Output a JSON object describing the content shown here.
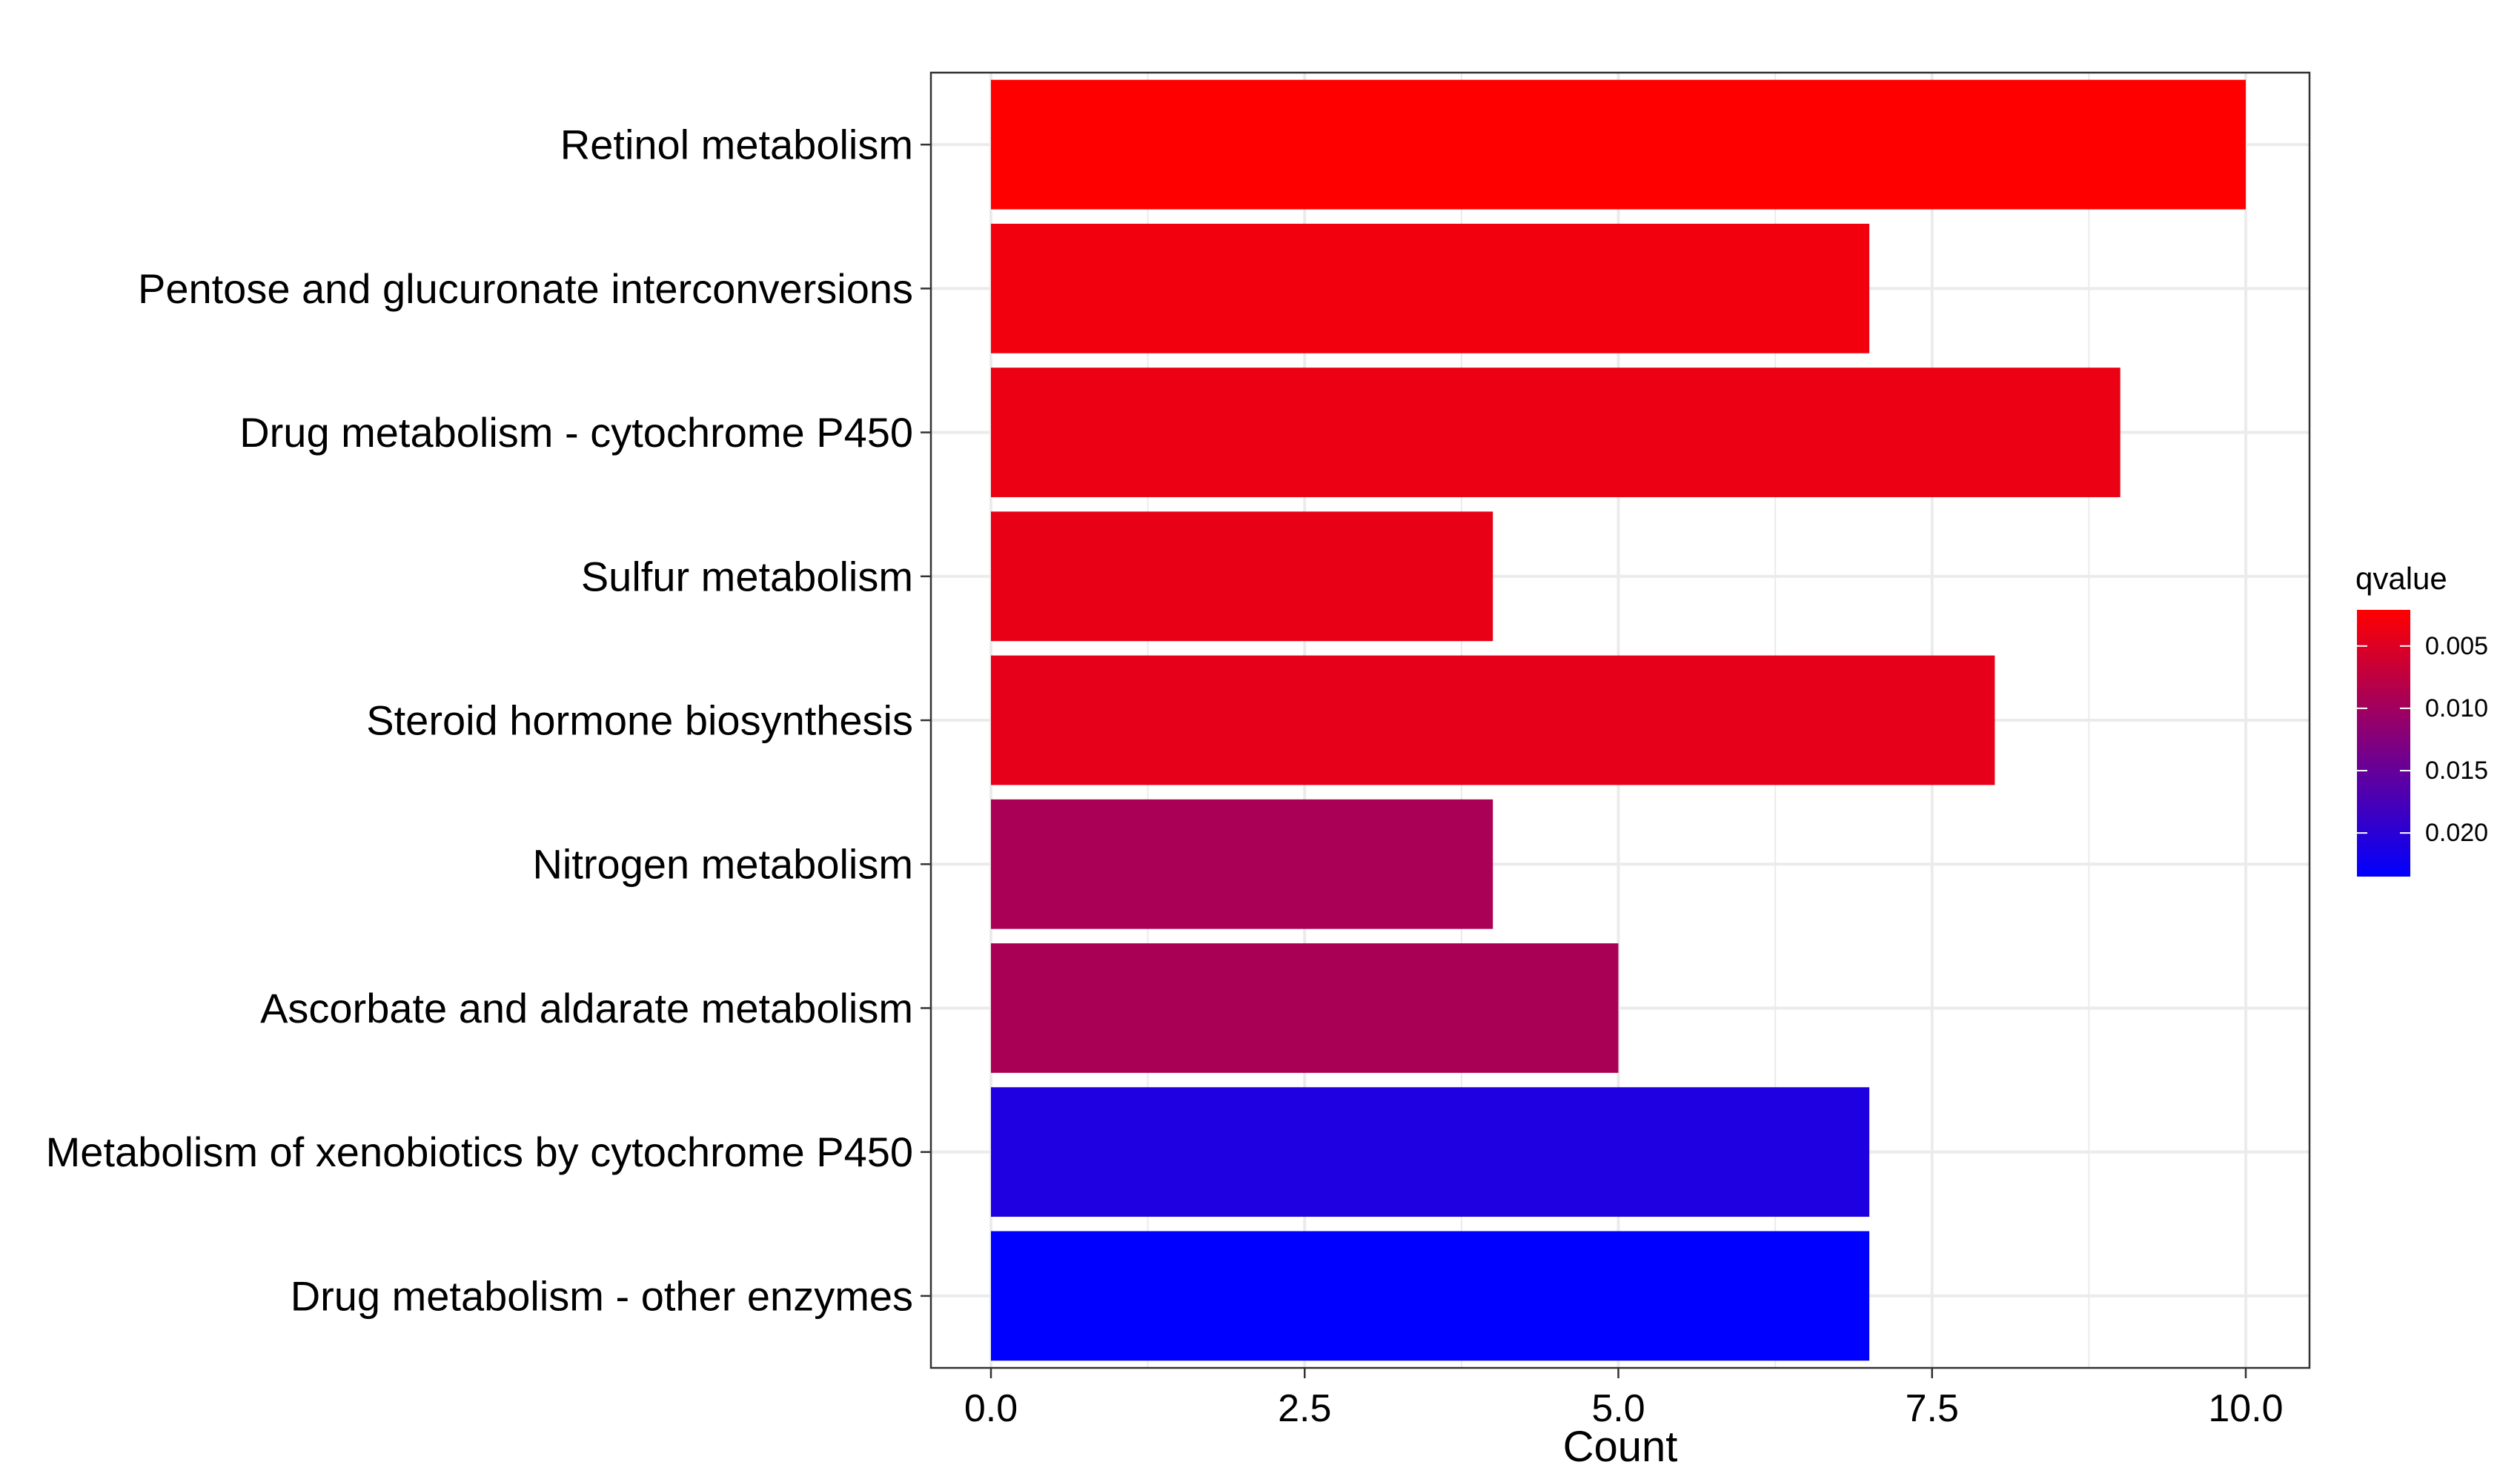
{
  "chart_data": {
    "type": "bar",
    "orientation": "horizontal",
    "title": "",
    "xlabel": "Count",
    "ylabel": "",
    "xlim": [
      0,
      10
    ],
    "x_ticks": [
      "0.0",
      "2.5",
      "5.0",
      "7.5",
      "10.0"
    ],
    "x_tick_values": [
      0,
      2.5,
      5,
      7.5,
      10
    ],
    "grid": true,
    "categories": [
      "Retinol metabolism",
      "Pentose and glucuronate interconversions",
      "Drug metabolism - cytochrome P450",
      "Sulfur metabolism",
      "Steroid hormone biosynthesis",
      "Nitrogen metabolism",
      "Ascorbate and aldarate metabolism",
      "Metabolism of xenobiotics by cytochrome P450",
      "Drug metabolism - other enzymes"
    ],
    "values": [
      10,
      7,
      9,
      4,
      8,
      4,
      5,
      7,
      7
    ],
    "qvalues": [
      0.0021,
      0.0032,
      0.0038,
      0.004,
      0.0042,
      0.0092,
      0.0093,
      0.021,
      0.0235
    ],
    "legend": {
      "title": "qvalue",
      "placement": "right",
      "tick_labels": [
        "0.005",
        "0.010",
        "0.015",
        "0.020"
      ],
      "tick_values": [
        0.005,
        0.01,
        0.015,
        0.02
      ],
      "range": [
        0.0021,
        0.0235
      ],
      "low_color": "#FF0000",
      "high_color": "#0000FF"
    }
  }
}
